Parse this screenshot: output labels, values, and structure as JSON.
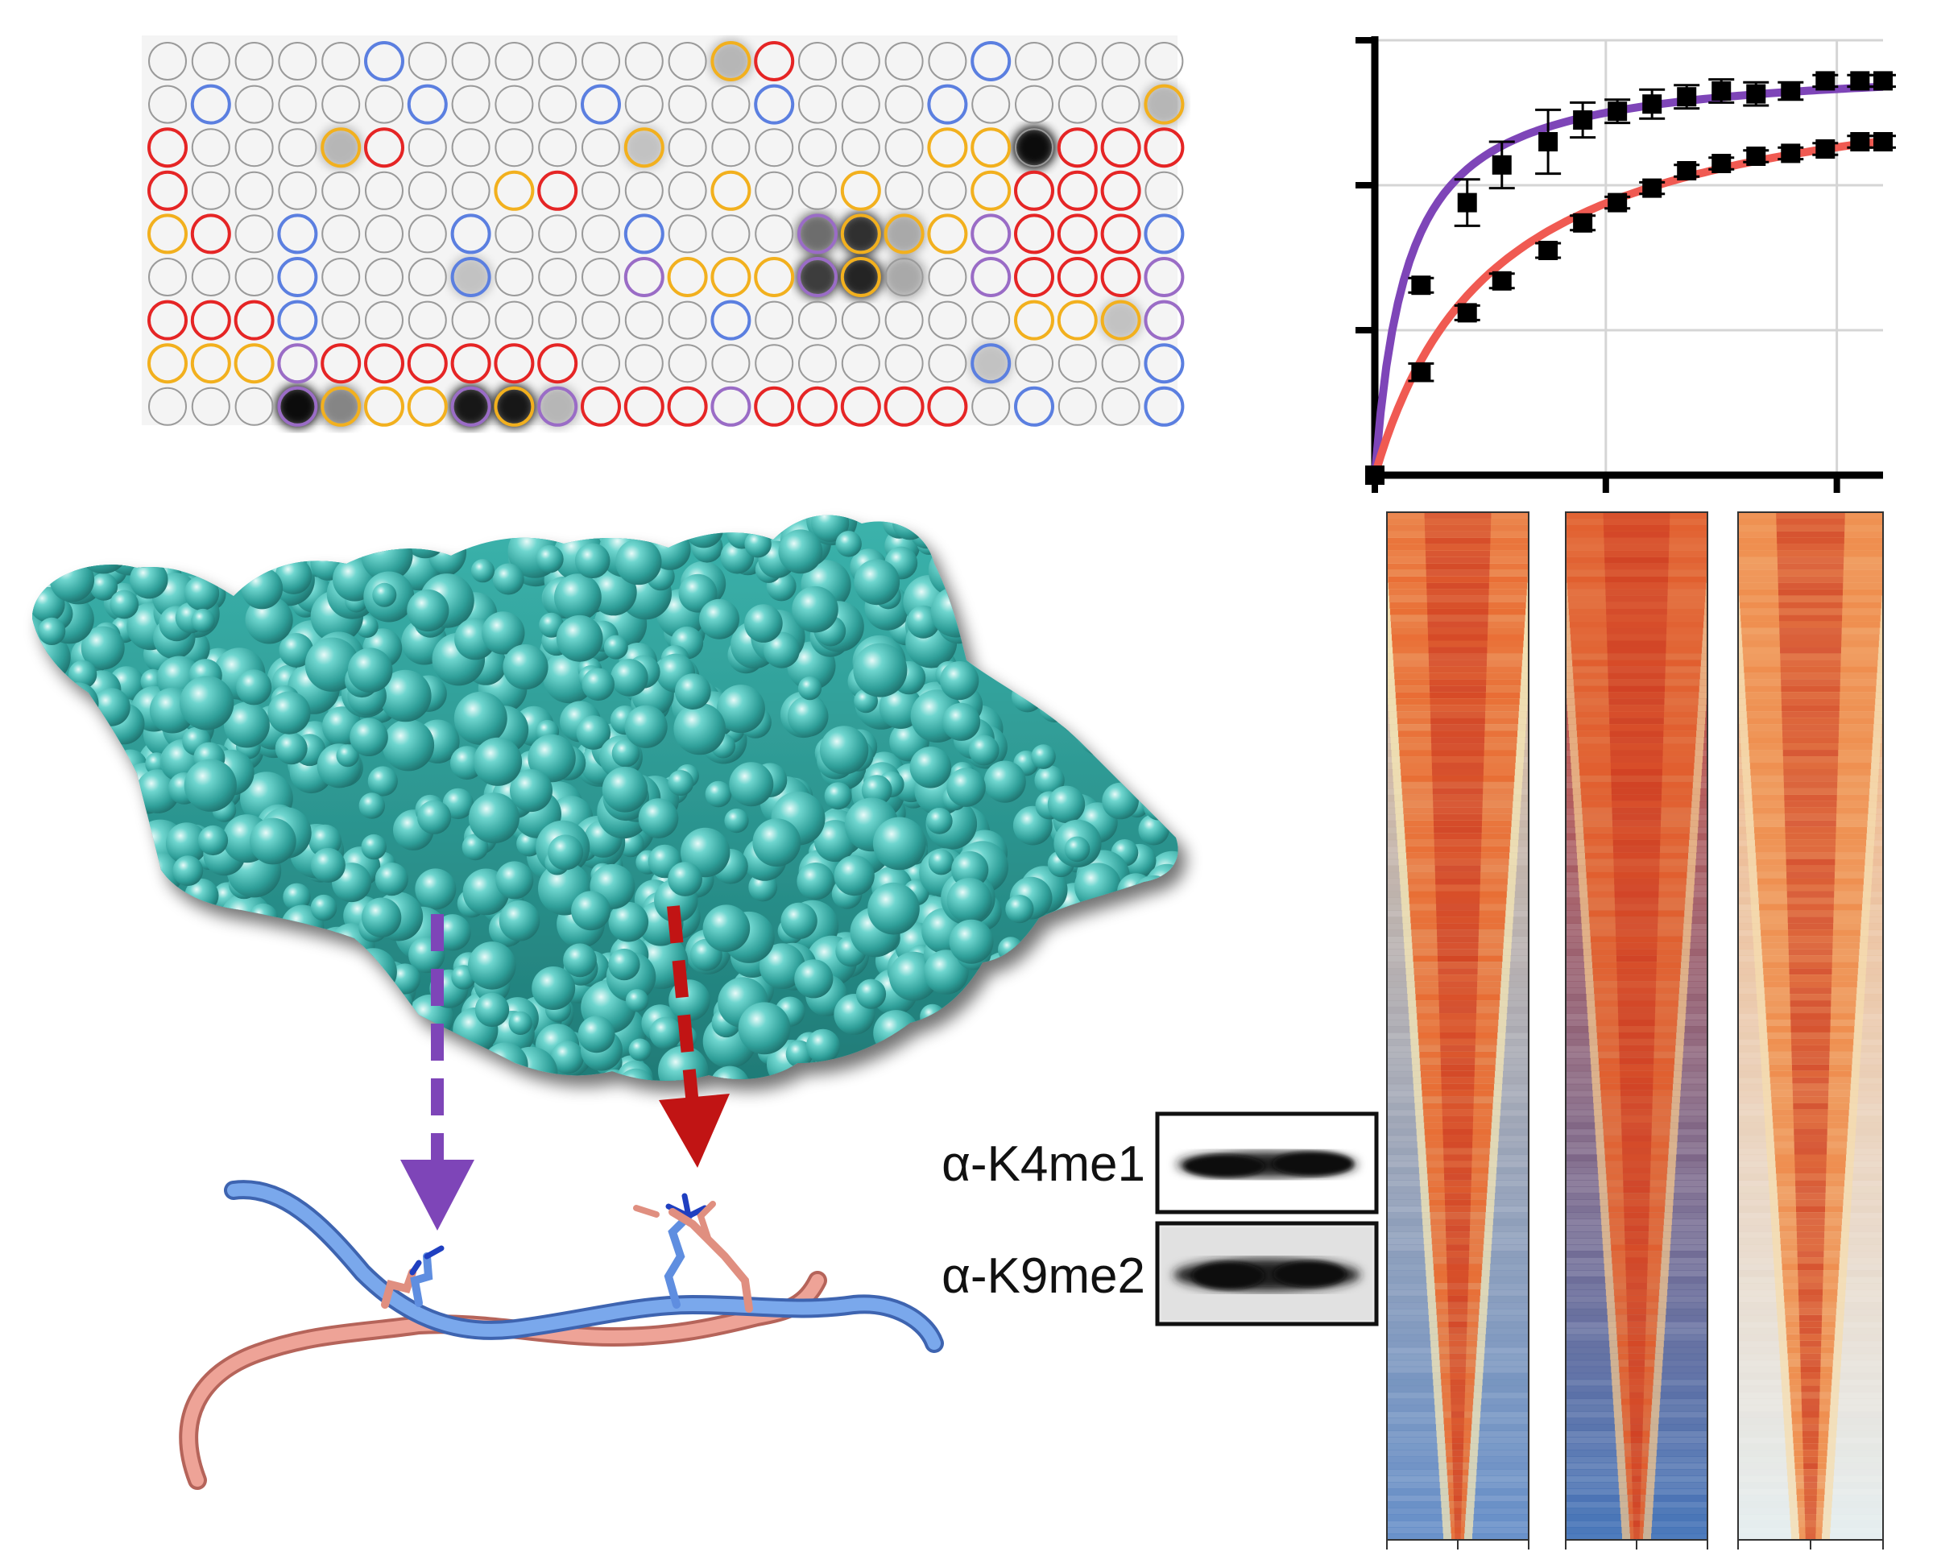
{
  "figure": {
    "panels": [
      "peptide-array",
      "binding-curve",
      "protein-surface",
      "peptide-structure",
      "western-blot",
      "heatmaps"
    ]
  },
  "peptide_array": {
    "rows": 9,
    "cols": 24,
    "colors": {
      "default": "#9a9a9a",
      "red": "#e52525",
      "blue": "#5b7fe0",
      "orange": "#f2b01e",
      "purple": "#9a6cc6"
    },
    "rings": [
      [
        0,
        "",
        "",
        "",
        "",
        "b",
        "",
        "",
        "",
        "",
        "",
        "",
        "",
        "o",
        "r",
        "",
        "",
        "",
        "",
        "b",
        "",
        "",
        "",
        ""
      ],
      [
        "",
        "b",
        "",
        "",
        "",
        "",
        "b",
        "",
        "",
        "",
        "b",
        "",
        "",
        "",
        "b",
        "",
        "",
        "",
        "b",
        "",
        "",
        "",
        "",
        "o"
      ],
      [
        "r",
        "",
        "",
        "",
        "o",
        "r",
        "",
        "",
        "",
        "",
        "",
        "o",
        "",
        "",
        "",
        "",
        "",
        "",
        "o",
        "o",
        "",
        "r",
        "r",
        "r"
      ],
      [
        "r",
        "",
        "",
        "",
        "",
        "",
        "",
        "",
        "o",
        "r",
        "",
        "",
        "",
        "o",
        "",
        "",
        "o",
        "",
        "",
        "o",
        "r",
        "r",
        "r",
        ""
      ],
      [
        "o",
        "r",
        "",
        "b",
        "",
        "",
        "",
        "b",
        "",
        "",
        "",
        "b",
        "",
        "",
        "",
        "p",
        "o",
        "o",
        "o",
        "p",
        "r",
        "r",
        "r",
        "b"
      ],
      [
        "",
        "",
        "",
        "b",
        "",
        "",
        "",
        "b",
        "",
        "",
        "",
        "p",
        "o",
        "o",
        "o",
        "p",
        "o",
        "",
        "",
        "p",
        "r",
        "r",
        "r",
        "p"
      ],
      [
        "r",
        "r",
        "r",
        "b",
        "",
        "",
        "",
        "",
        "",
        "",
        "",
        "",
        "",
        "b",
        "",
        "",
        "",
        "",
        "",
        "",
        "o",
        "o",
        "o",
        "p"
      ],
      [
        "o",
        "o",
        "o",
        "p",
        "r",
        "r",
        "r",
        "r",
        "r",
        "r",
        "",
        "",
        "",
        "",
        "",
        "",
        "",
        "",
        "",
        "b",
        "",
        "",
        "",
        "b"
      ],
      [
        "",
        "",
        "",
        "p",
        "o",
        "o",
        "o",
        "p",
        "o",
        "p",
        "r",
        "r",
        "r",
        "p",
        "r",
        "r",
        "r",
        "r",
        "r",
        "",
        "b",
        "",
        "",
        "b"
      ]
    ],
    "dark_spots": [
      {
        "row": 0,
        "col": 13,
        "level": 0.25
      },
      {
        "row": 1,
        "col": 23,
        "level": 0.25
      },
      {
        "row": 2,
        "col": 4,
        "level": 0.25
      },
      {
        "row": 2,
        "col": 11,
        "level": 0.2
      },
      {
        "row": 2,
        "col": 20,
        "level": 0.95
      },
      {
        "row": 4,
        "col": 15,
        "level": 0.55
      },
      {
        "row": 4,
        "col": 16,
        "level": 0.8
      },
      {
        "row": 4,
        "col": 17,
        "level": 0.3
      },
      {
        "row": 5,
        "col": 15,
        "level": 0.75
      },
      {
        "row": 5,
        "col": 16,
        "level": 0.85
      },
      {
        "row": 5,
        "col": 17,
        "level": 0.3
      },
      {
        "row": 5,
        "col": 7,
        "level": 0.2
      },
      {
        "row": 6,
        "col": 22,
        "level": 0.2
      },
      {
        "row": 8,
        "col": 3,
        "level": 0.95
      },
      {
        "row": 8,
        "col": 4,
        "level": 0.45
      },
      {
        "row": 8,
        "col": 7,
        "level": 0.9
      },
      {
        "row": 8,
        "col": 8,
        "level": 0.9
      },
      {
        "row": 8,
        "col": 9,
        "level": 0.25
      },
      {
        "row": 7,
        "col": 19,
        "level": 0.2
      }
    ]
  },
  "chart_data": {
    "type": "scatter",
    "title": "",
    "xlabel": "",
    "ylabel": "",
    "xlim": [
      0,
      22
    ],
    "ylim": [
      0,
      3
    ],
    "grid": true,
    "series": [
      {
        "color": "#7e45b8",
        "x": [
          0,
          2,
          4,
          5.5,
          7.5,
          9,
          10.5,
          12,
          13.5,
          15,
          16.5,
          18,
          19.5,
          21,
          22
        ],
        "y": [
          0,
          1.31,
          1.88,
          2.14,
          2.3,
          2.45,
          2.51,
          2.56,
          2.61,
          2.65,
          2.63,
          2.65,
          2.72,
          2.72,
          2.72
        ],
        "err": [
          0,
          0.05,
          0.16,
          0.16,
          0.22,
          0.12,
          0.08,
          0.1,
          0.08,
          0.08,
          0.08,
          0.06,
          0.04,
          0.04,
          0.04
        ]
      },
      {
        "color": "#f05a52",
        "x": [
          0,
          2,
          4,
          5.5,
          7.5,
          9,
          10.5,
          12,
          13.5,
          15,
          16.5,
          18,
          19.5,
          21,
          22
        ],
        "y": [
          0,
          0.71,
          1.12,
          1.34,
          1.55,
          1.74,
          1.88,
          1.98,
          2.1,
          2.15,
          2.2,
          2.22,
          2.25,
          2.3,
          2.3
        ],
        "err": [
          0,
          0.06,
          0.05,
          0.05,
          0.05,
          0.05,
          0.04,
          0.04,
          0.04,
          0.04,
          0.04,
          0.04,
          0.04,
          0.04,
          0.04
        ]
      }
    ]
  },
  "western_blot": {
    "labels": [
      "α-K4me1",
      "α-K9me2"
    ]
  },
  "heatmaps": {
    "count": 3,
    "colors": {
      "high": "#c8311e",
      "mid": "#f0a45a",
      "low": "#f6e7b4",
      "background": "#5a86c4"
    }
  },
  "arrows": {
    "left_color": "#7e45b8",
    "right_color": "#c11414"
  }
}
